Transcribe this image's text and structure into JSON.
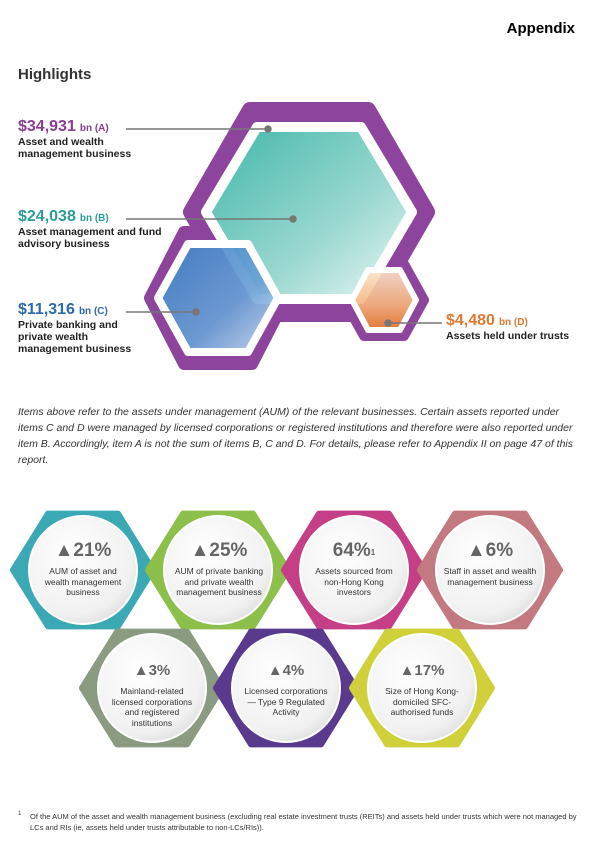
{
  "header": {
    "appendix": "Appendix",
    "highlights": "Highlights"
  },
  "stats": [
    {
      "value": "$34,931",
      "unit": "bn (A)",
      "label": "Asset and wealth management business",
      "color": "#8b3d96"
    },
    {
      "value": "$24,038",
      "unit": "bn (B)",
      "label": "Asset management and fund advisory business",
      "color": "#2a9d94"
    },
    {
      "value": "$11,316",
      "unit": "bn (C)",
      "label": "Private banking and private wealth management business",
      "color": "#2d6aa8"
    },
    {
      "value": "$4,480",
      "unit": "bn (D)",
      "label": "Assets held under trusts",
      "color": "#e07a31"
    }
  ],
  "note": "Items above refer to the assets under management (AUM) of the relevant businesses. Certain assets reported under items C and D were managed by licensed corporations or registered institutions and therefore were also reported under item B. Accordingly, item A is not the sum of items B, C and D. For details, please refer to Appendix II on page 47 of this report.",
  "badges": [
    {
      "pct": "▲21%",
      "sup": "",
      "desc": "AUM of asset and wealth management business",
      "color": "#3aa9b4"
    },
    {
      "pct": "▲25%",
      "sup": "",
      "desc": "AUM of private banking and private wealth management business",
      "color": "#8cc04b"
    },
    {
      "pct": "64%",
      "sup": "1",
      "desc": "Assets sourced from non-Hong Kong investors",
      "color": "#c53f86"
    },
    {
      "pct": "▲6%",
      "sup": "",
      "desc": "Staff in asset and wealth management business",
      "color": "#c27a80"
    },
    {
      "pct": "▲3%",
      "sup": "",
      "desc": "Mainland-related licensed corporations and registered institutions",
      "color": "#8a9b82"
    },
    {
      "pct": "▲4%",
      "sup": "",
      "desc": "Licensed corporations — Type 9 Regulated Activity",
      "color": "#5a3a8e"
    },
    {
      "pct": "▲17%",
      "sup": "",
      "desc": "Size of Hong Kong-domiciled SFC-authorised funds",
      "color": "#cfd03a"
    }
  ],
  "footnote": {
    "marker": "1",
    "text": "Of the AUM of the asset and wealth management business (excluding real estate investment trusts (REITs) and assets held under trusts which were not managed by LCs and RIs (ie, assets held under trusts attributable to non-LCs/RIs))."
  }
}
